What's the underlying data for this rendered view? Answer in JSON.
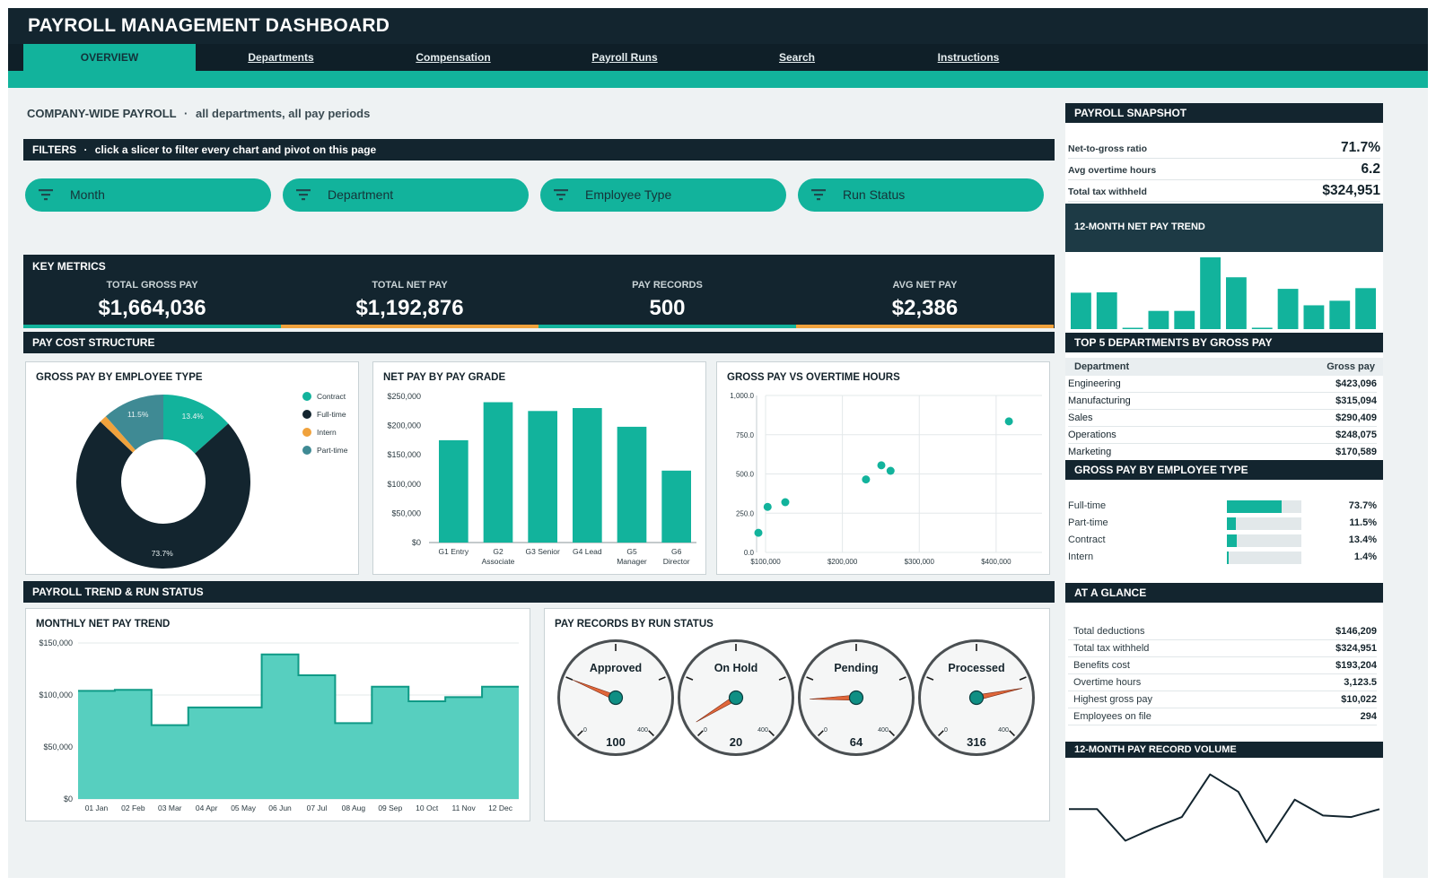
{
  "app": {
    "title": "PAYROLL MANAGEMENT DASHBOARD"
  },
  "tabs": [
    {
      "label": "OVERVIEW",
      "active": true
    },
    {
      "label": "Departments"
    },
    {
      "label": "Compensation"
    },
    {
      "label": "Payroll Runs"
    },
    {
      "label": "Search"
    },
    {
      "label": "Instructions"
    }
  ],
  "subtitle": {
    "main": "COMPANY-WIDE PAYROLL",
    "sep": "·",
    "detail": "all departments, all pay periods"
  },
  "filters": {
    "title": "FILTERS",
    "hint": "click a slicer to filter every chart and pivot on this page",
    "slicers": [
      "Month",
      "Department",
      "Employee Type",
      "Run Status"
    ]
  },
  "key_metrics": {
    "title": "KEY METRICS",
    "items": [
      {
        "label": "TOTAL GROSS PAY",
        "value": "$1,664,036",
        "accent": "#12b39c"
      },
      {
        "label": "TOTAL NET PAY",
        "value": "$1,192,876",
        "accent": "#f0a23c"
      },
      {
        "label": "PAY RECORDS",
        "value": "500",
        "accent": "#12b39c"
      },
      {
        "label": "AVG NET PAY",
        "value": "$2,386",
        "accent": "#f0a23c"
      }
    ]
  },
  "sections": {
    "pay_cost": "PAY COST STRUCTURE",
    "trend_status": "PAYROLL TREND & RUN STATUS"
  },
  "colors": {
    "teal": "#12b39c",
    "navy": "#13252f",
    "orange": "#f0a23c",
    "steel": "#3f8a94"
  },
  "chart_data": [
    {
      "id": "donut",
      "type": "pie",
      "title": "GROSS PAY BY EMPLOYEE TYPE",
      "slices": [
        {
          "name": "Contract",
          "value": 13.4,
          "label": "13.4%",
          "color": "#12b39c"
        },
        {
          "name": "Full-time",
          "value": 73.7,
          "label": "73.7%",
          "color": "#13252f"
        },
        {
          "name": "Intern",
          "value": 1.4,
          "label": "",
          "color": "#f0a23c"
        },
        {
          "name": "Part-time",
          "value": 11.5,
          "label": "11.5%",
          "color": "#3f8a94"
        }
      ],
      "legend": "right"
    },
    {
      "id": "bars",
      "type": "bar",
      "title": "NET PAY BY PAY GRADE",
      "categories": [
        [
          "G1 Entry"
        ],
        [
          "G2",
          "Associate"
        ],
        [
          "G3 Senior"
        ],
        [
          "G4 Lead"
        ],
        [
          "G5",
          "Manager"
        ],
        [
          "G6",
          "Director"
        ]
      ],
      "values": [
        175000,
        240000,
        225000,
        230000,
        198000,
        123000
      ],
      "ylim": [
        0,
        250000
      ],
      "yticks": [
        "$0",
        "$50,000",
        "$100,000",
        "$150,000",
        "$200,000",
        "$250,000"
      ]
    },
    {
      "id": "scatter",
      "type": "scatter",
      "title": "GROSS PAY VS OVERTIME HOURS",
      "points": [
        [
          100000,
          125
        ],
        [
          112000,
          290
        ],
        [
          135000,
          320
        ],
        [
          240000,
          465
        ],
        [
          260000,
          555
        ],
        [
          272000,
          520
        ],
        [
          426000,
          835
        ]
      ],
      "xlim": [
        100000,
        420000
      ],
      "ylim": [
        0,
        1000
      ],
      "xticks": [
        [
          100000,
          "$100,000"
        ],
        [
          200000,
          "$200,000"
        ],
        [
          300000,
          "$300,000"
        ],
        [
          400000,
          "$400,000"
        ]
      ],
      "yticks": [
        [
          0,
          "0.0"
        ],
        [
          250,
          "250.0"
        ],
        [
          500,
          "500.0"
        ],
        [
          750,
          "750.0"
        ],
        [
          1000,
          "1,000.0"
        ]
      ]
    },
    {
      "id": "area",
      "type": "area",
      "title": "MONTHLY NET PAY TREND",
      "categories": [
        "01 Jan",
        "02 Feb",
        "03 Mar",
        "04 Apr",
        "05 May",
        "06 Jun",
        "07 Jul",
        "08 Aug",
        "09 Sep",
        "10 Oct",
        "11 Nov",
        "12 Dec"
      ],
      "values": [
        104000,
        105000,
        71000,
        88000,
        88000,
        139000,
        119000,
        73000,
        108000,
        94000,
        98000,
        108000
      ],
      "ylim": [
        0,
        150000
      ],
      "yticks": [
        [
          0,
          "$0"
        ],
        [
          50000,
          "$50,000"
        ],
        [
          100000,
          "$100,000"
        ],
        [
          150000,
          "$150,000"
        ]
      ]
    },
    {
      "id": "gauges",
      "type": "gauge",
      "title": "PAY RECORDS BY RUN STATUS",
      "min": 0,
      "max": 400,
      "min_label": "0",
      "max_label": "400",
      "gauges": [
        {
          "name": "Approved",
          "value": 100
        },
        {
          "name": "On Hold",
          "value": 20
        },
        {
          "name": "Pending",
          "value": 64
        },
        {
          "name": "Processed",
          "value": 316
        }
      ]
    },
    {
      "id": "spark-bars",
      "type": "bar",
      "title": "12-MONTH NET PAY TREND",
      "values": [
        104000,
        105000,
        3000,
        52000,
        52000,
        205000,
        148000,
        4000,
        115000,
        68000,
        81000,
        117000
      ],
      "ylim": [
        0,
        210000
      ]
    },
    {
      "id": "spark-line",
      "type": "line",
      "title": "12-MONTH PAY RECORD VOLUME",
      "values": [
        44,
        44,
        4,
        20,
        34,
        88,
        66,
        2,
        56,
        36,
        34,
        44
      ],
      "ylim": [
        0,
        100
      ]
    }
  ],
  "right_panel": {
    "snapshot": {
      "title": "PAYROLL SNAPSHOT",
      "rows": [
        {
          "label": "Net-to-gross ratio",
          "value": "71.7%"
        },
        {
          "label": "Avg overtime hours",
          "value": "6.2"
        },
        {
          "label": "Total tax withheld",
          "value": "$324,951"
        }
      ]
    },
    "trend_title": "12-MONTH NET PAY TREND",
    "top_departments": {
      "title": "TOP 5 DEPARTMENTS BY GROSS PAY",
      "col_dept": "Department",
      "col_gross": "Gross pay",
      "rows": [
        {
          "name": "Engineering",
          "value": "$423,096"
        },
        {
          "name": "Manufacturing",
          "value": "$315,094"
        },
        {
          "name": "Sales",
          "value": "$290,409"
        },
        {
          "name": "Operations",
          "value": "$248,075"
        },
        {
          "name": "Marketing",
          "value": "$170,589"
        }
      ]
    },
    "employee_type": {
      "title": "GROSS PAY BY EMPLOYEE TYPE",
      "rows": [
        {
          "name": "Full-time",
          "value": "73.7%",
          "fraction": 0.737
        },
        {
          "name": "Part-time",
          "value": "11.5%",
          "fraction": 0.115
        },
        {
          "name": "Contract",
          "value": "13.4%",
          "fraction": 0.134
        },
        {
          "name": "Intern",
          "value": "1.4%",
          "fraction": 0.014
        }
      ]
    },
    "at_a_glance": {
      "title": "AT A GLANCE",
      "rows": [
        {
          "label": "Total deductions",
          "value": "$146,209"
        },
        {
          "label": "Total tax withheld",
          "value": "$324,951"
        },
        {
          "label": "Benefits cost",
          "value": "$193,204"
        },
        {
          "label": "Overtime hours",
          "value": "3,123.5"
        },
        {
          "label": "Highest gross pay",
          "value": "$10,022"
        },
        {
          "label": "Employees on file",
          "value": "294"
        }
      ]
    },
    "volume_title": "12-MONTH PAY RECORD VOLUME"
  }
}
